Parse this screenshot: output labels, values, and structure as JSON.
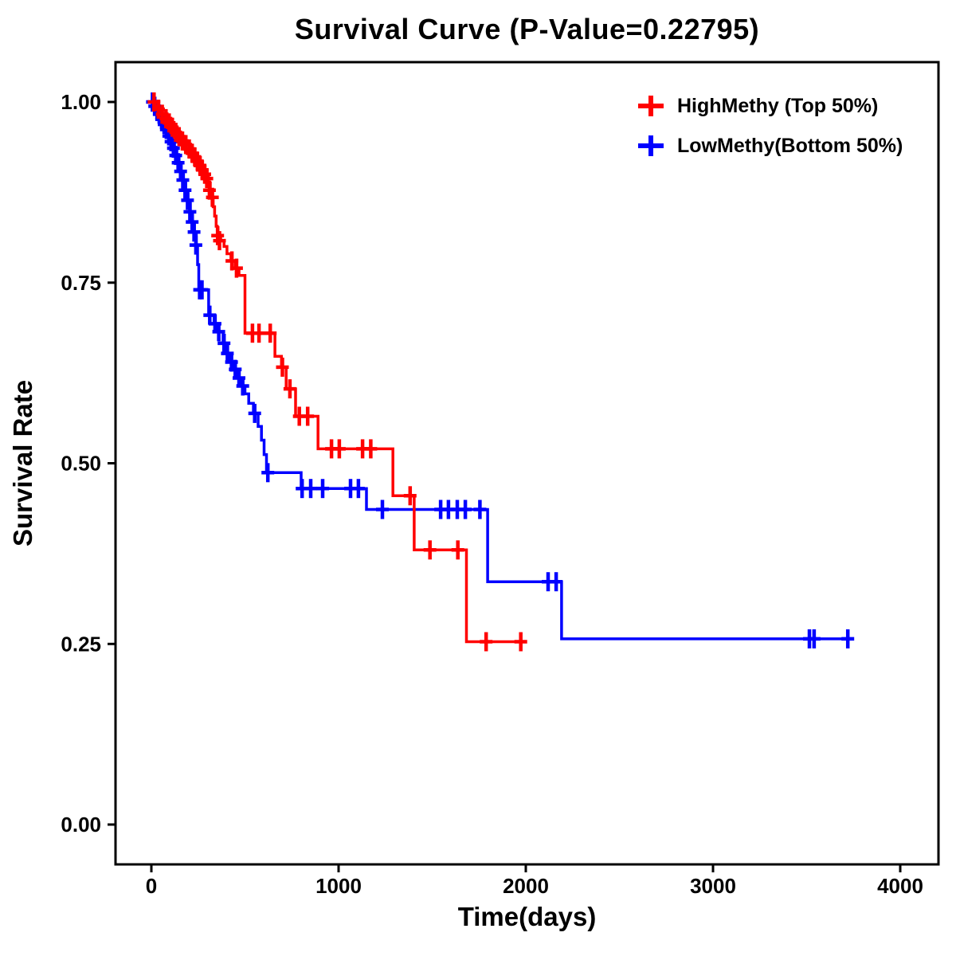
{
  "chart_data": {
    "type": "line",
    "subtype": "kaplan-meier-step",
    "title": "Survival Curve (P-Value=0.22795)",
    "xlabel": "Time(days)",
    "ylabel": "Survival Rate",
    "p_value": 0.22795,
    "xlim": [
      -190,
      4200
    ],
    "ylim": [
      -0.055,
      1.055
    ],
    "grid": false,
    "legend_position": "top-right",
    "x_ticks": [
      {
        "value": 0,
        "label": "0"
      },
      {
        "value": 1000,
        "label": "1000"
      },
      {
        "value": 2000,
        "label": "2000"
      },
      {
        "value": 3000,
        "label": "3000"
      },
      {
        "value": 4000,
        "label": "4000"
      }
    ],
    "y_ticks": [
      {
        "value": 0.0,
        "label": "0.00"
      },
      {
        "value": 0.25,
        "label": "0.25"
      },
      {
        "value": 0.5,
        "label": "0.50"
      },
      {
        "value": 0.75,
        "label": "0.75"
      },
      {
        "value": 1.0,
        "label": "1.00"
      }
    ],
    "series": [
      {
        "name": "HighMethy (Top 50%)",
        "color": "#FF0000",
        "end_time": 1995,
        "steps": [
          [
            0,
            1.0
          ],
          [
            20,
            0.994
          ],
          [
            40,
            0.988
          ],
          [
            60,
            0.982
          ],
          [
            80,
            0.976
          ],
          [
            100,
            0.97
          ],
          [
            120,
            0.963
          ],
          [
            140,
            0.957
          ],
          [
            160,
            0.951
          ],
          [
            180,
            0.945
          ],
          [
            200,
            0.938
          ],
          [
            215,
            0.932
          ],
          [
            230,
            0.926
          ],
          [
            245,
            0.92
          ],
          [
            258,
            0.914
          ],
          [
            270,
            0.908
          ],
          [
            282,
            0.902
          ],
          [
            294,
            0.896
          ],
          [
            305,
            0.888
          ],
          [
            315,
            0.878
          ],
          [
            322,
            0.868
          ],
          [
            330,
            0.855
          ],
          [
            338,
            0.842
          ],
          [
            346,
            0.828
          ],
          [
            352,
            0.815
          ],
          [
            370,
            0.808
          ],
          [
            388,
            0.8
          ],
          [
            404,
            0.79
          ],
          [
            425,
            0.78
          ],
          [
            448,
            0.77
          ],
          [
            468,
            0.76
          ],
          [
            500,
            0.68
          ],
          [
            660,
            0.648
          ],
          [
            695,
            0.633
          ],
          [
            720,
            0.603
          ],
          [
            770,
            0.565
          ],
          [
            890,
            0.52
          ],
          [
            1290,
            0.455
          ],
          [
            1404,
            0.38
          ],
          [
            1683,
            0.253
          ]
        ],
        "censors": [
          [
            14,
            1.0
          ],
          [
            38,
            0.99
          ],
          [
            58,
            0.983
          ],
          [
            78,
            0.977
          ],
          [
            95,
            0.971
          ],
          [
            112,
            0.965
          ],
          [
            130,
            0.958
          ],
          [
            148,
            0.952
          ],
          [
            166,
            0.946
          ],
          [
            184,
            0.941
          ],
          [
            202,
            0.935
          ],
          [
            218,
            0.929
          ],
          [
            232,
            0.924
          ],
          [
            246,
            0.918
          ],
          [
            260,
            0.912
          ],
          [
            272,
            0.906
          ],
          [
            285,
            0.9
          ],
          [
            296,
            0.894
          ],
          [
            310,
            0.878
          ],
          [
            326,
            0.868
          ],
          [
            354,
            0.815
          ],
          [
            364,
            0.808
          ],
          [
            430,
            0.78
          ],
          [
            455,
            0.77
          ],
          [
            540,
            0.68
          ],
          [
            575,
            0.68
          ],
          [
            635,
            0.68
          ],
          [
            700,
            0.633
          ],
          [
            740,
            0.603
          ],
          [
            790,
            0.565
          ],
          [
            835,
            0.565
          ],
          [
            962,
            0.52
          ],
          [
            1004,
            0.52
          ],
          [
            1128,
            0.52
          ],
          [
            1172,
            0.52
          ],
          [
            1382,
            0.455
          ],
          [
            1488,
            0.38
          ],
          [
            1637,
            0.38
          ],
          [
            1788,
            0.253
          ],
          [
            1973,
            0.253
          ]
        ]
      },
      {
        "name": "LowMethy(Bottom 50%)",
        "color": "#0000FF",
        "end_time": 3723,
        "steps": [
          [
            0,
            1.0
          ],
          [
            15,
            0.994
          ],
          [
            30,
            0.988
          ],
          [
            45,
            0.981
          ],
          [
            60,
            0.974
          ],
          [
            75,
            0.966
          ],
          [
            88,
            0.958
          ],
          [
            100,
            0.95
          ],
          [
            112,
            0.941
          ],
          [
            124,
            0.932
          ],
          [
            136,
            0.922
          ],
          [
            148,
            0.912
          ],
          [
            160,
            0.9
          ],
          [
            172,
            0.888
          ],
          [
            184,
            0.874
          ],
          [
            196,
            0.86
          ],
          [
            208,
            0.846
          ],
          [
            220,
            0.832
          ],
          [
            230,
            0.818
          ],
          [
            240,
            0.8
          ],
          [
            247,
            0.775
          ],
          [
            253,
            0.74
          ],
          [
            306,
            0.705
          ],
          [
            335,
            0.693
          ],
          [
            355,
            0.682
          ],
          [
            383,
            0.666
          ],
          [
            400,
            0.652
          ],
          [
            420,
            0.64
          ],
          [
            440,
            0.63
          ],
          [
            460,
            0.618
          ],
          [
            480,
            0.607
          ],
          [
            500,
            0.596
          ],
          [
            520,
            0.583
          ],
          [
            545,
            0.569
          ],
          [
            570,
            0.551
          ],
          [
            588,
            0.532
          ],
          [
            602,
            0.512
          ],
          [
            615,
            0.487
          ],
          [
            800,
            0.465
          ],
          [
            1149,
            0.436
          ],
          [
            1796,
            0.336
          ],
          [
            2191,
            0.257
          ]
        ],
        "censors": [
          [
            6,
            1.0
          ],
          [
            18,
            0.994
          ],
          [
            30,
            0.989
          ],
          [
            42,
            0.983
          ],
          [
            55,
            0.976
          ],
          [
            68,
            0.969
          ],
          [
            80,
            0.962
          ],
          [
            93,
            0.953
          ],
          [
            105,
            0.945
          ],
          [
            118,
            0.936
          ],
          [
            130,
            0.926
          ],
          [
            143,
            0.916
          ],
          [
            156,
            0.904
          ],
          [
            168,
            0.892
          ],
          [
            180,
            0.878
          ],
          [
            193,
            0.864
          ],
          [
            206,
            0.848
          ],
          [
            218,
            0.834
          ],
          [
            228,
            0.82
          ],
          [
            238,
            0.802
          ],
          [
            258,
            0.74
          ],
          [
            270,
            0.74
          ],
          [
            312,
            0.705
          ],
          [
            340,
            0.693
          ],
          [
            360,
            0.682
          ],
          [
            388,
            0.666
          ],
          [
            406,
            0.652
          ],
          [
            428,
            0.64
          ],
          [
            448,
            0.63
          ],
          [
            468,
            0.618
          ],
          [
            488,
            0.607
          ],
          [
            552,
            0.569
          ],
          [
            622,
            0.487
          ],
          [
            805,
            0.465
          ],
          [
            851,
            0.465
          ],
          [
            915,
            0.465
          ],
          [
            1064,
            0.465
          ],
          [
            1106,
            0.465
          ],
          [
            1234,
            0.436
          ],
          [
            1545,
            0.436
          ],
          [
            1587,
            0.436
          ],
          [
            1634,
            0.436
          ],
          [
            1677,
            0.436
          ],
          [
            1755,
            0.436
          ],
          [
            2119,
            0.336
          ],
          [
            2162,
            0.336
          ],
          [
            3515,
            0.257
          ],
          [
            3540,
            0.257
          ],
          [
            3720,
            0.257
          ]
        ]
      }
    ]
  }
}
